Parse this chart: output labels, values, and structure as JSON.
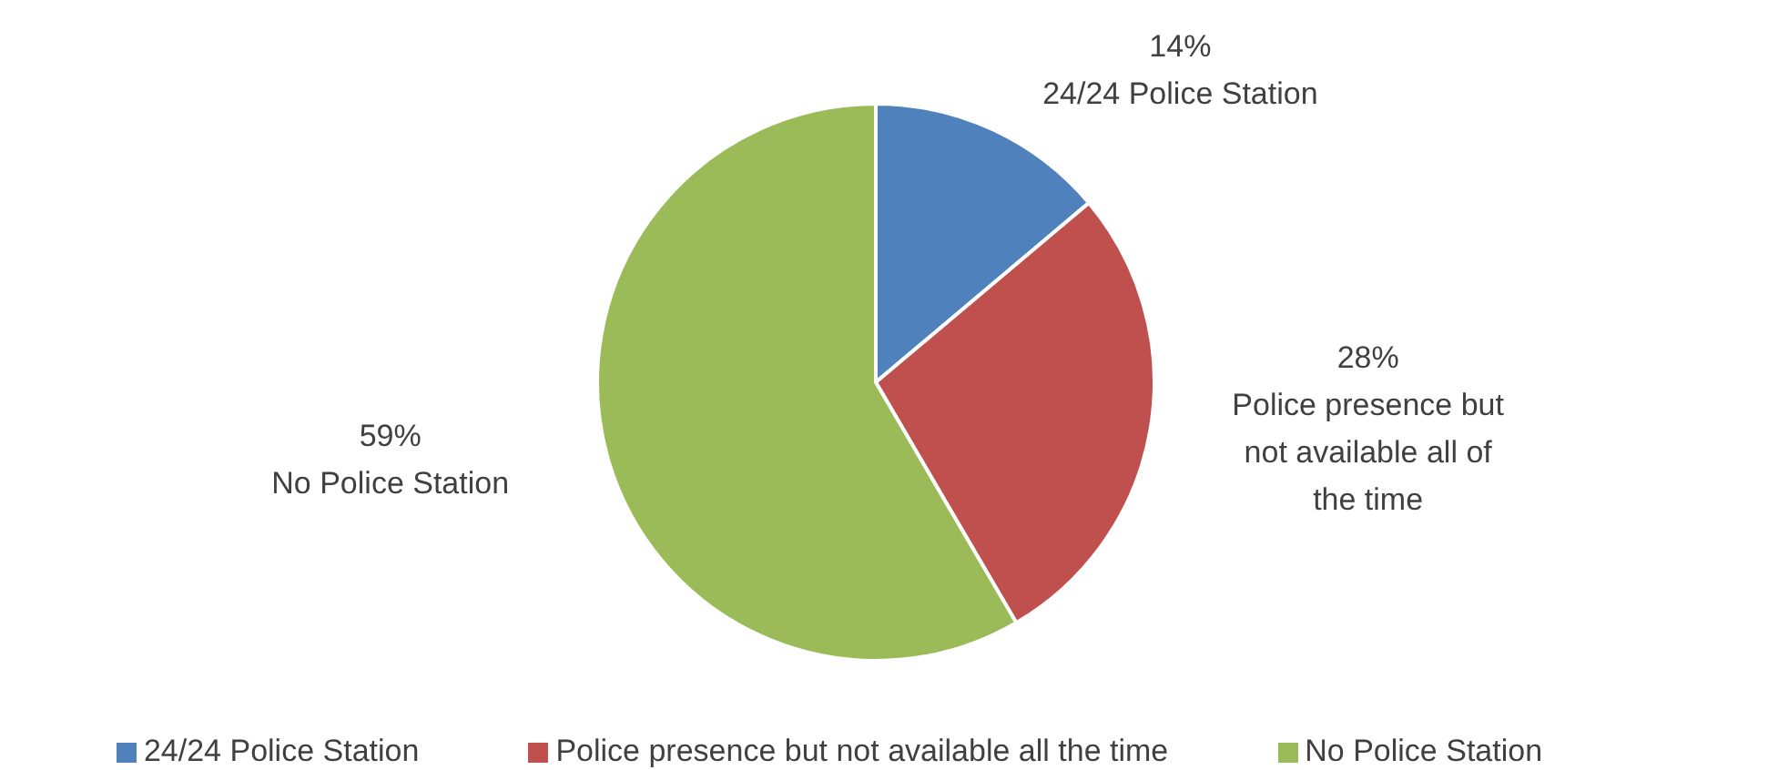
{
  "chart_data": {
    "type": "pie",
    "categories": [
      "24/24 Police Station",
      "Police presence but not available all the time",
      "No Police Station"
    ],
    "values": [
      14,
      28,
      59
    ],
    "colors": [
      "#4f81bd",
      "#c0504d",
      "#9bbb59"
    ],
    "value_labels": [
      "14%\n24/24 Police Station",
      "28%\nPolice presence but not available all of the time",
      "59%\nNo Police Station"
    ],
    "legend": "bottom"
  }
}
